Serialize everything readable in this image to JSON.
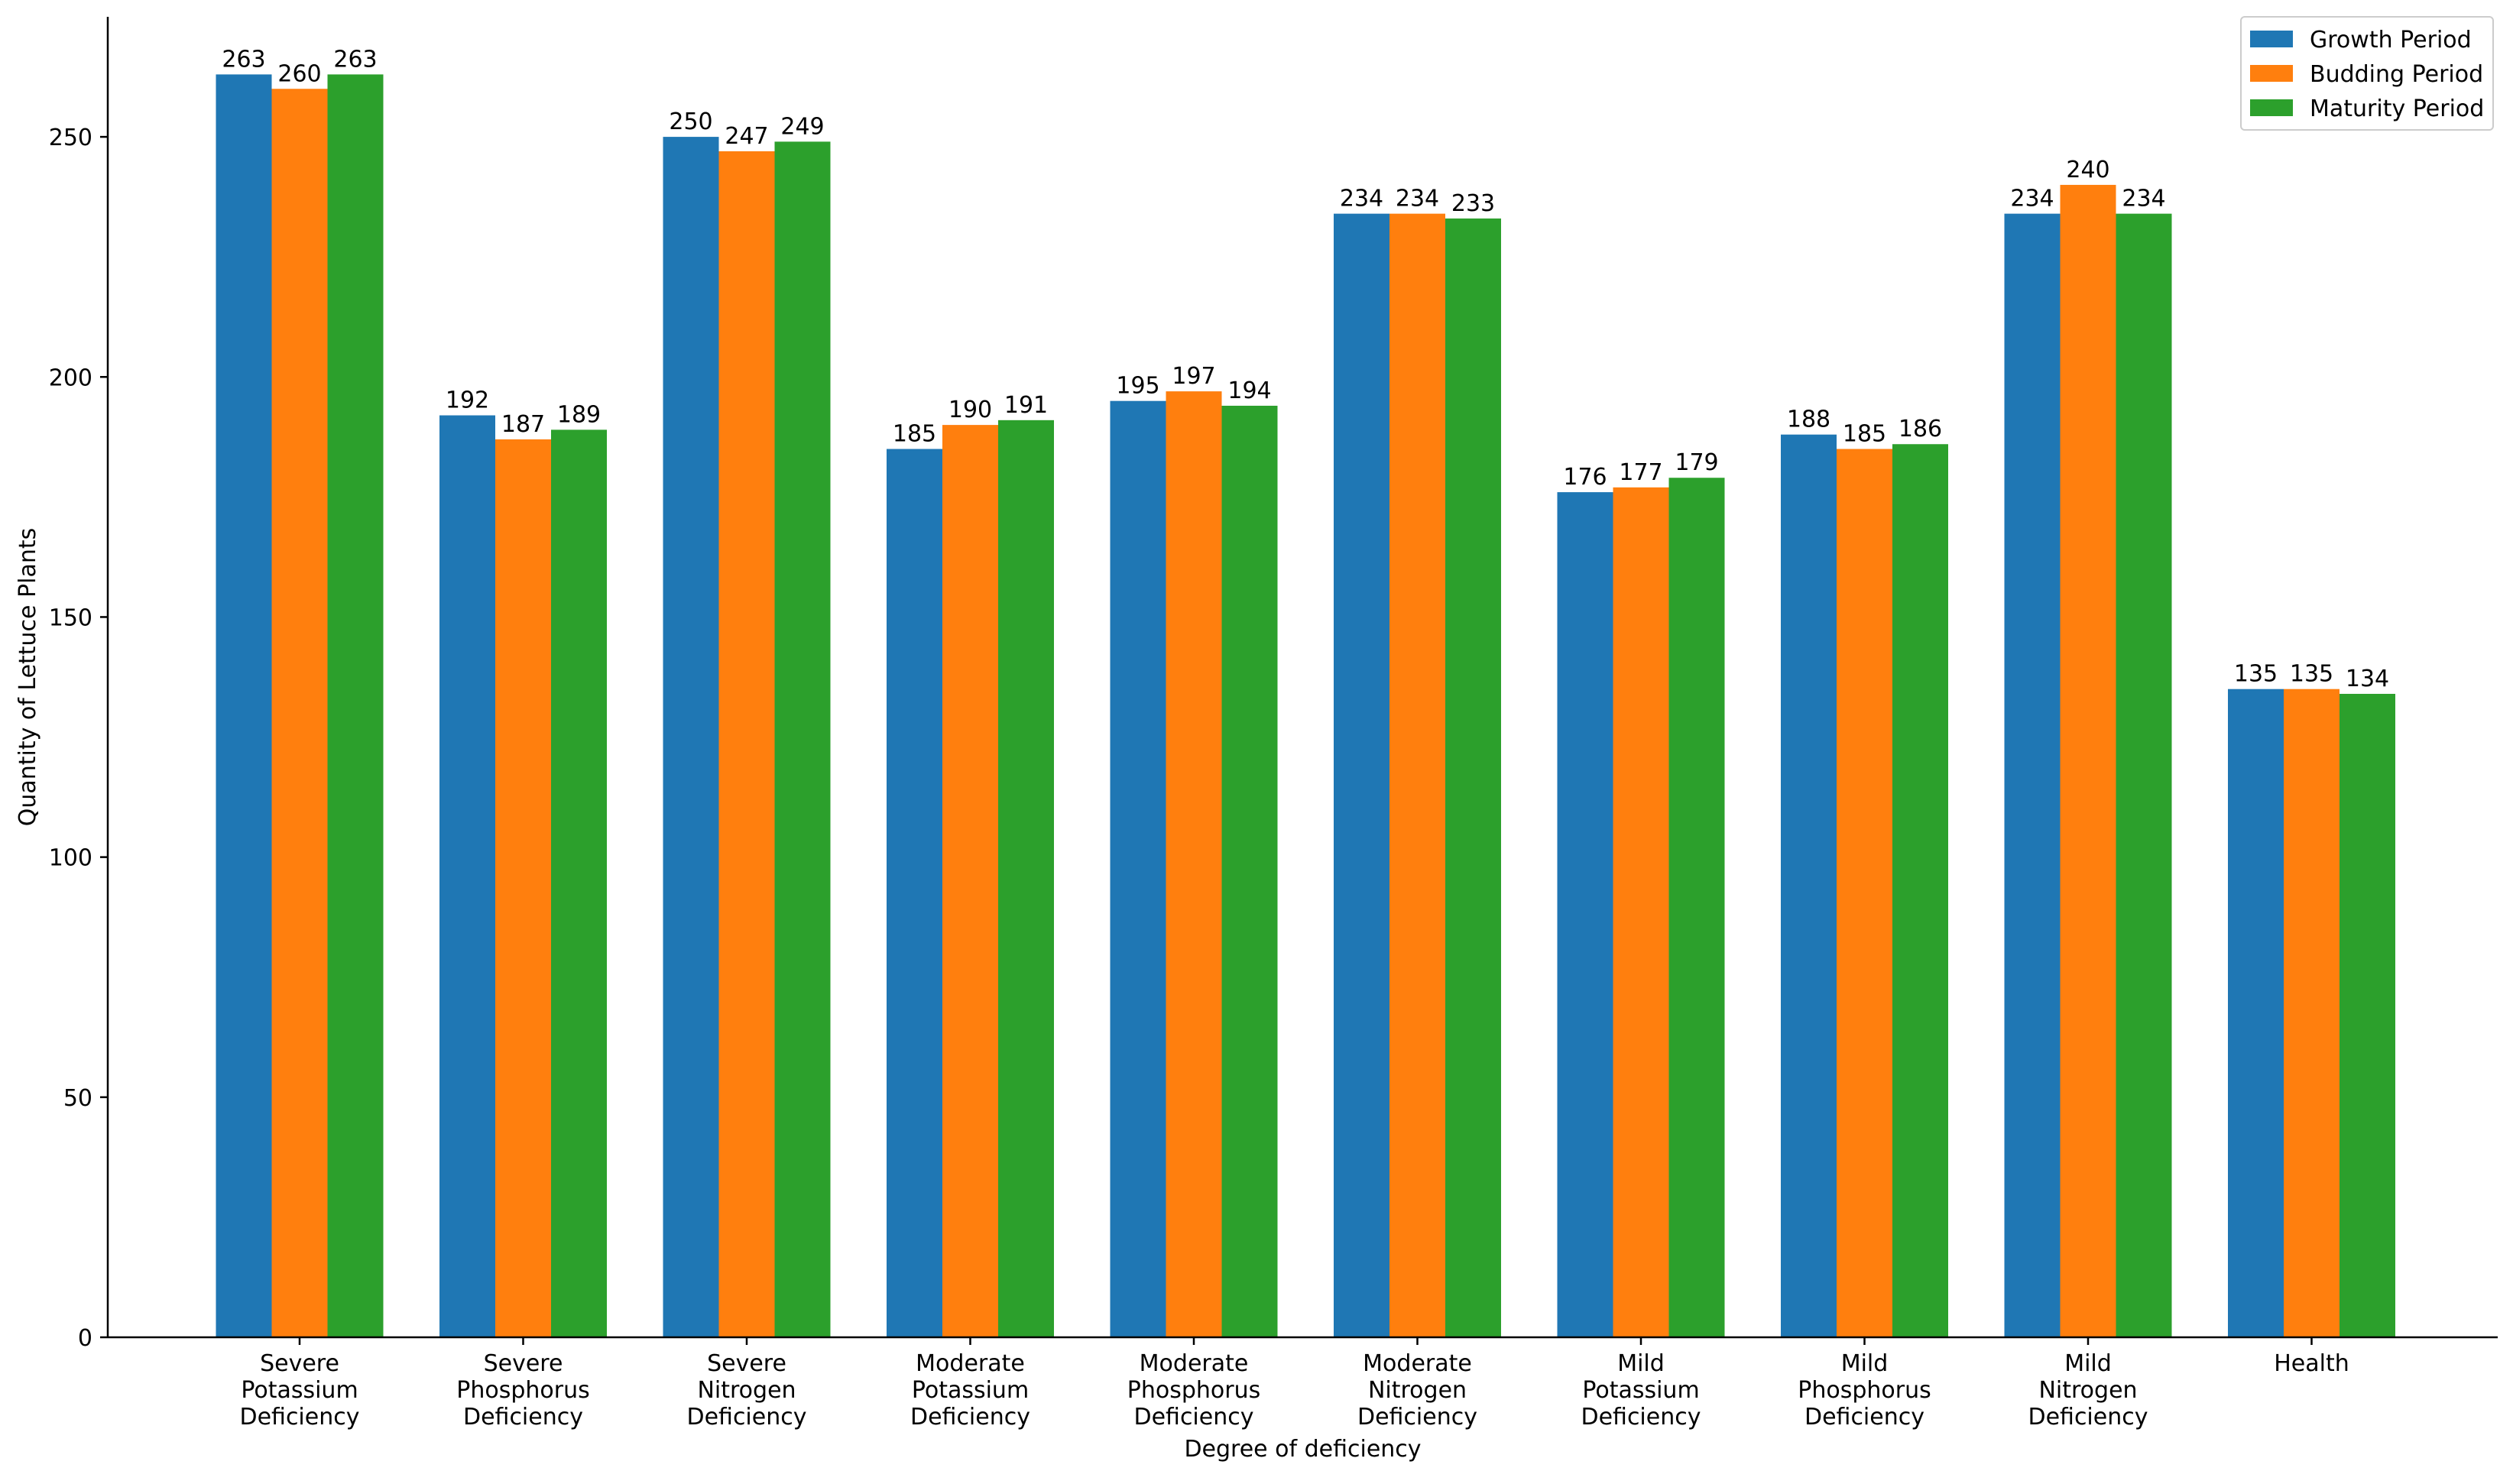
{
  "chart_data": {
    "type": "bar",
    "title": "",
    "xlabel": "Degree of deficiency",
    "ylabel": "Quantity of Lettuce Plants",
    "ylim": [
      0,
      275
    ],
    "yticks": [
      0,
      50,
      100,
      150,
      200,
      250
    ],
    "grid": false,
    "legend_position": "top-right",
    "categories": [
      [
        "Severe",
        "Potassium",
        "Deficiency"
      ],
      [
        "Severe",
        "Phosphorus",
        "Deficiency"
      ],
      [
        "Severe",
        "Nitrogen",
        "Deficiency"
      ],
      [
        "Moderate",
        "Potassium",
        "Deficiency"
      ],
      [
        "Moderate",
        "Phosphorus",
        "Deficiency"
      ],
      [
        "Moderate",
        "Nitrogen",
        "Deficiency"
      ],
      [
        "Mild",
        "Potassium",
        "Deficiency"
      ],
      [
        "Mild",
        "Phosphorus",
        "Deficiency"
      ],
      [
        "Mild",
        "Nitrogen",
        "Deficiency"
      ],
      [
        "Health"
      ]
    ],
    "series": [
      {
        "name": "Growth Period",
        "color": "#1f77b4",
        "values": [
          263,
          192,
          250,
          185,
          195,
          234,
          176,
          188,
          234,
          135
        ]
      },
      {
        "name": "Budding Period",
        "color": "#ff7f0e",
        "values": [
          260,
          187,
          247,
          190,
          197,
          234,
          177,
          185,
          240,
          135
        ]
      },
      {
        "name": "Maturity Period",
        "color": "#2ca02c",
        "values": [
          263,
          189,
          249,
          191,
          194,
          233,
          179,
          186,
          234,
          134
        ]
      }
    ]
  }
}
